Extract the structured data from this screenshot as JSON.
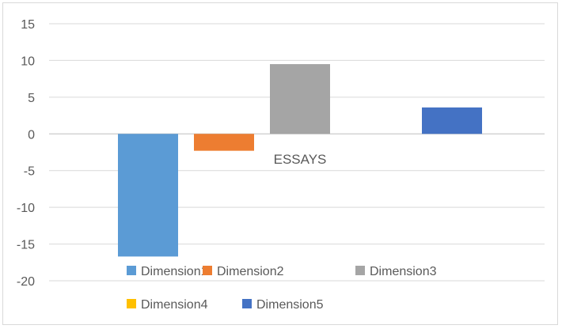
{
  "chart_data": {
    "type": "bar",
    "categories": [
      "ESSAYS"
    ],
    "series": [
      {
        "name": "Dimension1",
        "values": [
          -16.7
        ],
        "color": "#5b9bd5"
      },
      {
        "name": "Dimension2",
        "values": [
          -2.3
        ],
        "color": "#ed7d31"
      },
      {
        "name": "Dimension3",
        "values": [
          9.5
        ],
        "color": "#a5a5a5"
      },
      {
        "name": "Dimension4",
        "values": [
          0
        ],
        "color": "#ffc000"
      },
      {
        "name": "Dimension5",
        "values": [
          3.6
        ],
        "color": "#4472c4"
      }
    ],
    "yticks": [
      "15",
      "10",
      "5",
      "0",
      "-5",
      "-10",
      "-15",
      "-20"
    ],
    "ylim": [
      -20,
      15
    ],
    "grid": true,
    "legend_position": "bottom",
    "title": "",
    "xlabel": "",
    "ylabel": ""
  }
}
